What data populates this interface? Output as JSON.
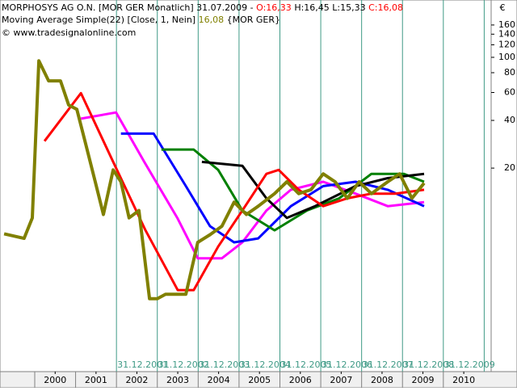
{
  "chart_data": {
    "type": "line",
    "title": "MORPHOSYS AG O.N. [MOR GER  Monatlich] 31.07.2009 -",
    "ohlc": [
      "O:16,33",
      "H:16,45",
      "L:15,33",
      "C:16,08"
    ],
    "indicator": "Moving Average Simple(22) [Close, 1, Nein]",
    "indicator_value": "16,08",
    "indicator_symbol": "{MOR GER}",
    "copyright": "© www.tradesignalonline.com",
    "currency": "€",
    "log_scale": true,
    "xlim": [
      1999.15,
      2011.17
    ],
    "ylim": [
      1.04,
      230
    ],
    "yticks": [
      20,
      40,
      60,
      80,
      100,
      120,
      140,
      160
    ],
    "xticks": [
      {
        "value": 2000.5,
        "label": "2000"
      },
      {
        "value": 2001.5,
        "label": "2001"
      },
      {
        "value": 2002.5,
        "label": "2002"
      },
      {
        "value": 2003.5,
        "label": "2003"
      },
      {
        "value": 2004.5,
        "label": "2004"
      },
      {
        "value": 2005.5,
        "label": "2005"
      },
      {
        "value": 2006.5,
        "label": "2006"
      },
      {
        "value": 2007.5,
        "label": "2007"
      },
      {
        "value": 2008.5,
        "label": "2008"
      },
      {
        "value": 2009.5,
        "label": "2009"
      },
      {
        "value": 2010.5,
        "label": "2010"
      }
    ],
    "vlines": [
      {
        "value": 2002,
        "label": "31.12.2001"
      },
      {
        "value": 2003,
        "label": "31.12.2002"
      },
      {
        "value": 2004,
        "label": "31.12.2003"
      },
      {
        "value": 2005,
        "label": "31.12.2004"
      },
      {
        "value": 2006,
        "label": "31.12.2005"
      },
      {
        "value": 2007,
        "label": "31.12.2006"
      },
      {
        "value": 2008,
        "label": "31.12.2007"
      },
      {
        "value": 2009,
        "label": "31.12.2008"
      },
      {
        "value": 2010,
        "label": "31.12.2009"
      },
      2011
    ],
    "series": [
      {
        "color": "#ff00ff",
        "width": 3,
        "x": [
          2001.13,
          2001.99,
          2002.68,
          2003.49,
          2003.99,
          2004.58,
          2005.08,
          2005.67,
          2006.27,
          2007.06,
          2007.85,
          2008.64,
          2009.53
        ],
        "values": [
          41,
          44.9,
          21.9,
          9.7,
          5.4,
          5.4,
          6.8,
          10.8,
          14.6,
          16.4,
          13.8,
          11.5,
          12.2
        ]
      },
      {
        "color": "#0000ff",
        "width": 3,
        "x": [
          2002.11,
          2002.91,
          2003.7,
          2004.29,
          2004.88,
          2005.47,
          2006.27,
          2007.06,
          2007.85,
          2008.64,
          2009.53
        ],
        "values": [
          33,
          33,
          15.4,
          8.6,
          6.8,
          7.2,
          11.5,
          15.4,
          16.4,
          14.6,
          11.5
        ]
      },
      {
        "color": "#008000",
        "width": 3,
        "x": [
          2003.1,
          2003.89,
          2004.49,
          2005.08,
          2005.87,
          2006.66,
          2007.45,
          2008.24,
          2009.03,
          2009.53
        ],
        "values": [
          26.2,
          26.2,
          19.5,
          10.8,
          8.1,
          10.8,
          12.9,
          18.4,
          18.4,
          16.4
        ]
      },
      {
        "color": "#000000",
        "width": 3,
        "x": [
          2004.09,
          2005.08,
          2005.67,
          2006.17,
          2006.86,
          2007.85,
          2008.64,
          2009.53
        ],
        "values": [
          21.9,
          20.7,
          12.9,
          9.7,
          11.5,
          15.4,
          17.3,
          18.4
        ]
      },
      {
        "color": "#ff0000",
        "width": 3,
        "x": [
          2000.24,
          2001.13,
          2001.92,
          2002.71,
          2003.5,
          2003.89,
          2004.49,
          2005.08,
          2005.67,
          2005.97,
          2006.46,
          2007.06,
          2007.65,
          2008.24,
          2008.83,
          2009.53
        ],
        "values": [
          29.6,
          59.4,
          21.9,
          8.1,
          3.4,
          3.4,
          6.4,
          10.8,
          18.4,
          19.5,
          14.6,
          11.5,
          12.9,
          13.8,
          13.8,
          14.6
        ]
      },
      {
        "color": "#808000",
        "width": 4,
        "x": [
          1999.25,
          1999.74,
          1999.94,
          2000.1,
          2000.34,
          2000.63,
          2000.83,
          2001.03,
          2001.23,
          2001.48,
          2001.68,
          2001.92,
          2002.11,
          2002.31,
          2002.55,
          2002.81,
          2003.0,
          2003.2,
          2003.7,
          2003.99,
          2004.29,
          2004.58,
          2004.88,
          2005.18,
          2005.47,
          2005.87,
          2006.17,
          2006.46,
          2006.76,
          2007.06,
          2007.35,
          2007.65,
          2007.94,
          2008.24,
          2008.64,
          2008.93,
          2009.23,
          2009.53
        ],
        "values": [
          7.7,
          7.2,
          9.7,
          95,
          71,
          71,
          50,
          47,
          29.6,
          16.4,
          10.2,
          19.5,
          16.4,
          9.7,
          10.8,
          3.0,
          3.0,
          3.2,
          3.2,
          6.8,
          7.6,
          8.6,
          12.2,
          10.2,
          11.5,
          13.8,
          16.4,
          13.8,
          14.6,
          18.4,
          16.4,
          12.9,
          16.4,
          13.8,
          16.4,
          18.4,
          12.9,
          16.1
        ]
      }
    ]
  }
}
